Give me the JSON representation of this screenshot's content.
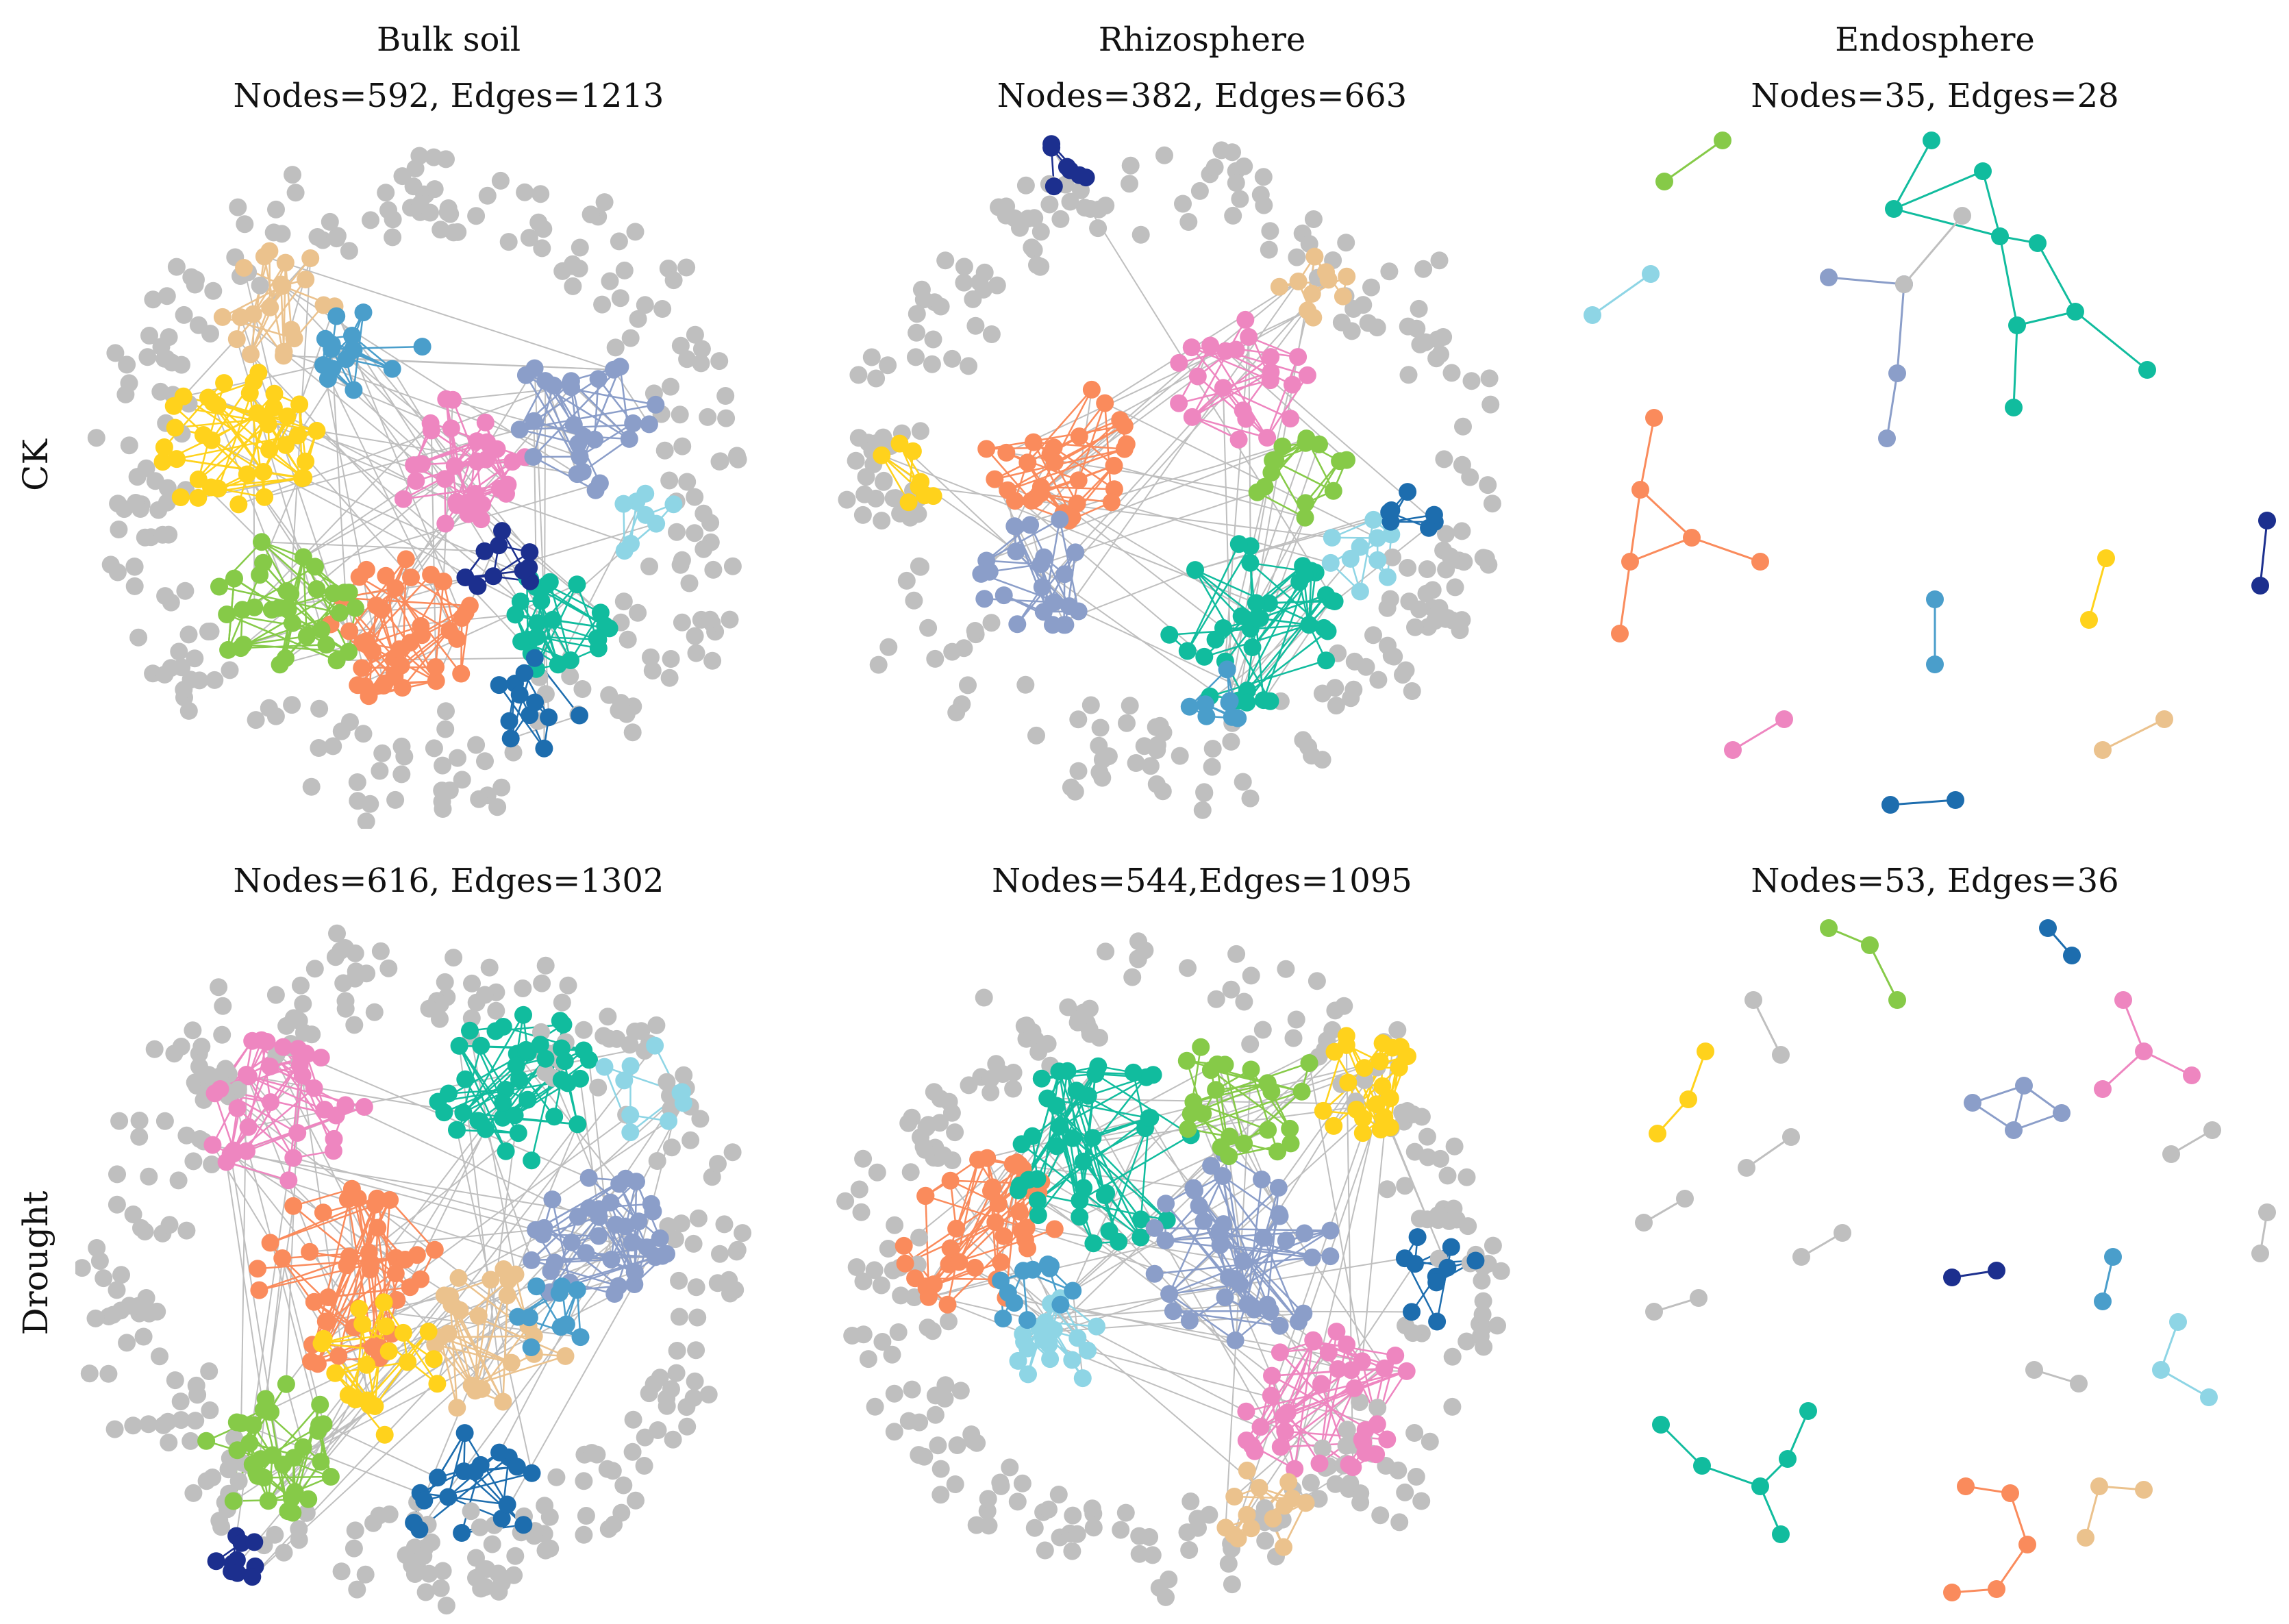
{
  "figure": {
    "columns": [
      "Bulk soil",
      "Rhizosphere",
      "Endosphere"
    ],
    "rows": [
      "CK",
      "Drought"
    ]
  },
  "palette": {
    "yellow": "#ffd21c",
    "orange": "#fa8b5c",
    "pink": "#ee86c0",
    "teal": "#11bc9e",
    "lightblue": "#8ed5e5",
    "lavender": "#8b9ec9",
    "green": "#86ca48",
    "tan": "#ebc28d",
    "navy": "#1c2f8e",
    "blue": "#1d6dae",
    "steel": "#4a9ecb",
    "gray": "#bfbfbf"
  },
  "panels": [
    {
      "id": "ck-bulk",
      "row": "CK",
      "column": "Bulk soil",
      "stats": "Nodes=592, Edges=1213",
      "nodes": 592,
      "edges": 1213
    },
    {
      "id": "ck-rhizo",
      "row": "CK",
      "column": "Rhizosphere",
      "stats": "Nodes=382, Edges=663",
      "nodes": 382,
      "edges": 663
    },
    {
      "id": "ck-endo",
      "row": "CK",
      "column": "Endosphere",
      "stats": "Nodes=35, Edges=28",
      "nodes": 35,
      "edges": 28
    },
    {
      "id": "dr-bulk",
      "row": "Drought",
      "column": "Bulk soil",
      "stats": "Nodes=616, Edges=1302",
      "nodes": 616,
      "edges": 1302
    },
    {
      "id": "dr-rhizo",
      "row": "Drought",
      "column": "Rhizosphere",
      "stats": "Nodes=544,Edges=1095",
      "nodes": 544,
      "edges": 1095
    },
    {
      "id": "dr-endo",
      "row": "Drought",
      "column": "Endosphere",
      "stats": "Nodes=53, Edges=36",
      "nodes": 53,
      "edges": 36
    }
  ]
}
